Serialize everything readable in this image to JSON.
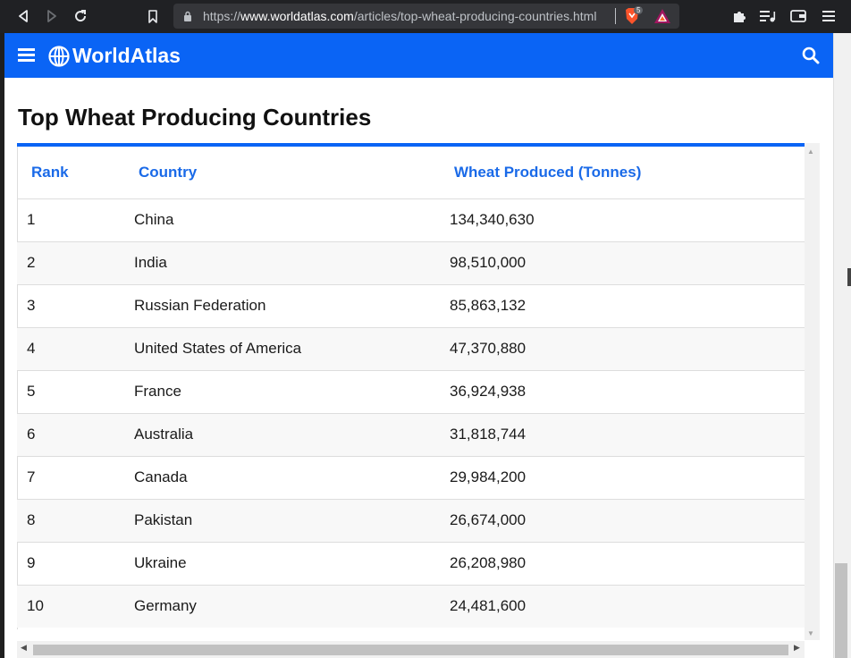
{
  "browser": {
    "url_prefix": "https://",
    "url_domain": "www.worldatlas.com",
    "url_path": "/articles/top-wheat-producing-countries.html",
    "brave_badge": "5"
  },
  "site": {
    "brand": "WorldAtlas",
    "accent": "#0a64f5"
  },
  "article": {
    "title": "Top Wheat Producing Countries"
  },
  "table": {
    "headers": [
      "Rank",
      "Country",
      "Wheat Produced (Tonnes)"
    ],
    "rows": [
      {
        "rank": "1",
        "country": "China",
        "wheat": "134,340,630"
      },
      {
        "rank": "2",
        "country": "India",
        "wheat": "98,510,000"
      },
      {
        "rank": "3",
        "country": "Russian Federation",
        "wheat": "85,863,132"
      },
      {
        "rank": "4",
        "country": "United States of America",
        "wheat": "47,370,880"
      },
      {
        "rank": "5",
        "country": "France",
        "wheat": "36,924,938"
      },
      {
        "rank": "6",
        "country": "Australia",
        "wheat": "31,818,744"
      },
      {
        "rank": "7",
        "country": "Canada",
        "wheat": "29,984,200"
      },
      {
        "rank": "8",
        "country": "Pakistan",
        "wheat": "26,674,000"
      },
      {
        "rank": "9",
        "country": "Ukraine",
        "wheat": "26,208,980"
      },
      {
        "rank": "10",
        "country": "Germany",
        "wheat": "24,481,600"
      }
    ]
  }
}
